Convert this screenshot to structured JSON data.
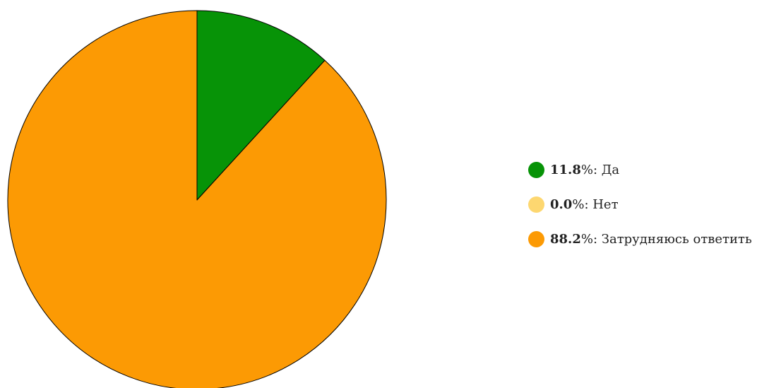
{
  "chart_data": {
    "type": "pie",
    "unit": "%",
    "slices": [
      {
        "label": "Да",
        "value": 11.8,
        "value_text": "11.8",
        "color": "#079307"
      },
      {
        "label": "Нет",
        "value": 0.0,
        "value_text": "0.0",
        "color": "#fdd770"
      },
      {
        "label": "Затрудняюсь ответить",
        "value": 88.2,
        "value_text": "88.2",
        "color": "#fc9a04"
      }
    ],
    "legend_position": "right",
    "start_angle": "12 o'clock",
    "direction": "clockwise"
  }
}
